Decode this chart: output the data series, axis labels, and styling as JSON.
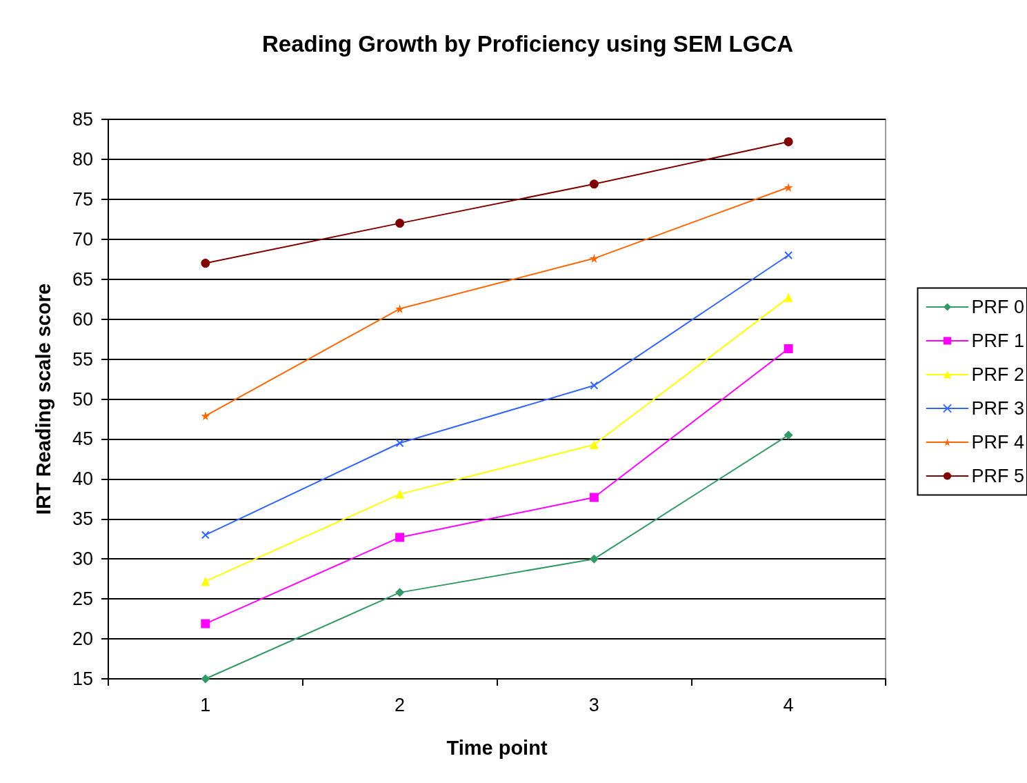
{
  "chart_data": {
    "type": "line",
    "title": "Reading Growth by Proficiency using SEM LGCA",
    "xlabel": "Time point",
    "ylabel": "IRT Reading scale score",
    "categories": [
      "1",
      "2",
      "3",
      "4"
    ],
    "series": [
      {
        "name": "PRF 0",
        "color": "#339966",
        "marker": "diamond",
        "values": [
          15.0,
          25.8,
          30.0,
          45.5
        ]
      },
      {
        "name": "PRF 1",
        "color": "#ff00ff",
        "marker": "square",
        "values": [
          21.9,
          32.7,
          37.7,
          56.3
        ]
      },
      {
        "name": "PRF 2",
        "color": "#ffff00",
        "marker": "triangle",
        "values": [
          27.2,
          38.1,
          44.3,
          62.7
        ]
      },
      {
        "name": "PRF 3",
        "color": "#3366ff",
        "marker": "cross",
        "values": [
          33.0,
          44.5,
          51.7,
          68.0
        ]
      },
      {
        "name": "PRF 4",
        "color": "#ff6600",
        "marker": "star",
        "values": [
          47.9,
          61.3,
          67.6,
          76.5
        ]
      },
      {
        "name": "PRF 5",
        "color": "#800000",
        "marker": "circle",
        "values": [
          67.0,
          72.0,
          76.9,
          82.2
        ]
      }
    ],
    "ylim": [
      15,
      85
    ],
    "yticks": [
      15,
      20,
      25,
      30,
      35,
      40,
      45,
      50,
      55,
      60,
      65,
      70,
      75,
      80,
      85
    ],
    "grid": "y",
    "legend": "right",
    "line_style": "solid"
  }
}
